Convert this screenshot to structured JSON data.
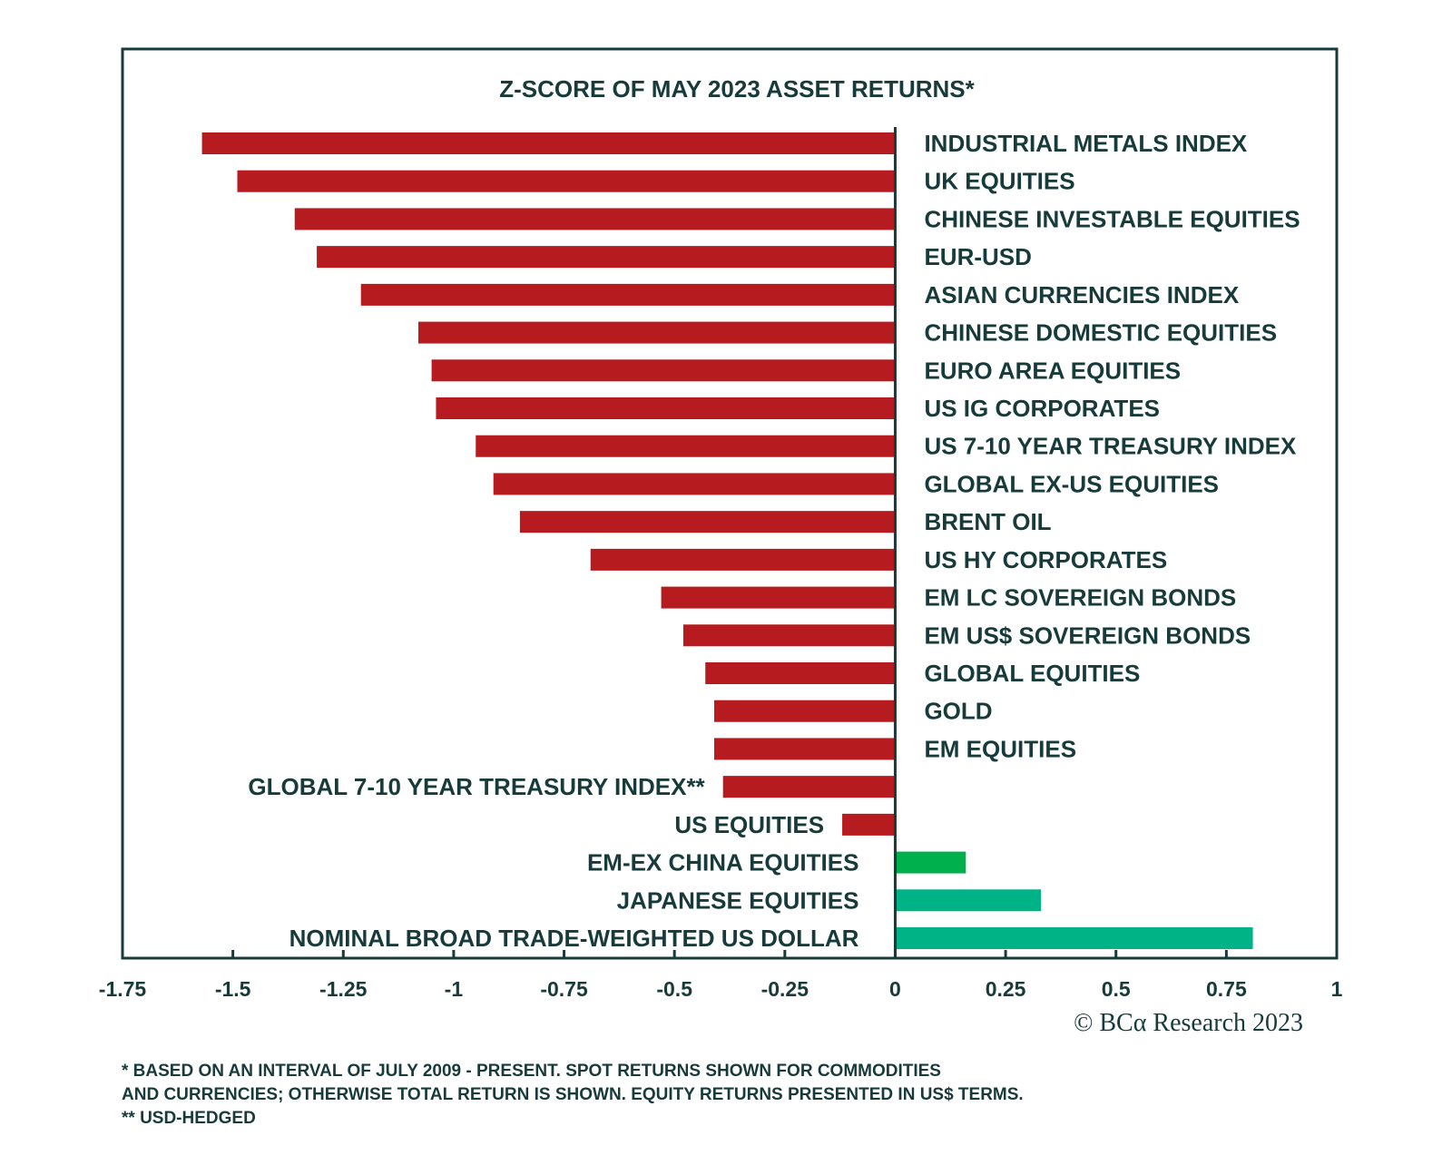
{
  "chart_data": {
    "type": "bar",
    "orientation": "horizontal",
    "title": "Z-SCORE OF MAY 2023 ASSET RETURNS*",
    "categories": [
      "INDUSTRIAL METALS INDEX",
      "UK EQUITIES",
      "CHINESE INVESTABLE EQUITIES",
      "EUR-USD",
      "ASIAN CURRENCIES INDEX",
      "CHINESE DOMESTIC EQUITIES",
      "EURO AREA EQUITIES",
      "US IG CORPORATES",
      "US 7-10 YEAR TREASURY INDEX",
      "GLOBAL EX-US EQUITIES",
      "BRENT OIL",
      "US HY CORPORATES",
      "EM LC SOVEREIGN BONDS",
      "EM US$ SOVEREIGN BONDS",
      "GLOBAL EQUITIES",
      "GOLD",
      "EM EQUITIES",
      "GLOBAL 7-10 YEAR TREASURY INDEX**",
      "US EQUITIES",
      "EM-EX CHINA EQUITIES",
      "JAPANESE EQUITIES",
      "NOMINAL BROAD TRADE-WEIGHTED US DOLLAR"
    ],
    "values": [
      -1.57,
      -1.49,
      -1.36,
      -1.31,
      -1.21,
      -1.08,
      -1.05,
      -1.04,
      -0.95,
      -0.91,
      -0.85,
      -0.69,
      -0.53,
      -0.48,
      -0.43,
      -0.41,
      -0.41,
      -0.39,
      -0.12,
      0.16,
      0.33,
      0.81
    ],
    "bar_colors": [
      "#b51b1f",
      "#b51b1f",
      "#b51b1f",
      "#b51b1f",
      "#b51b1f",
      "#b51b1f",
      "#b51b1f",
      "#b51b1f",
      "#b51b1f",
      "#b51b1f",
      "#b51b1f",
      "#b51b1f",
      "#b51b1f",
      "#b51b1f",
      "#b51b1f",
      "#b51b1f",
      "#b51b1f",
      "#b51b1f",
      "#b51b1f",
      "#00b04c",
      "#00b386",
      "#00b386"
    ],
    "xlim": [
      -1.75,
      1
    ],
    "xticks": [
      "-1.75",
      "-1.5",
      "-1.25",
      "-1",
      "-0.75",
      "-0.5",
      "-0.25",
      "0",
      "0.25",
      "0.5",
      "0.75",
      "1"
    ],
    "xlabel": "",
    "ylabel": "",
    "grid": false,
    "text_color": "#173b3a"
  },
  "source": "© BCα Research 2023",
  "footnotes": [
    "* BASED ON AN INTERVAL OF JULY 2009 - PRESENT. SPOT RETURNS SHOWN FOR COMMODITIES",
    "AND CURRENCIES; OTHERWISE TOTAL RETURN IS SHOWN. EQUITY RETURNS PRESENTED IN US$ TERMS.",
    "** USD-HEDGED"
  ]
}
